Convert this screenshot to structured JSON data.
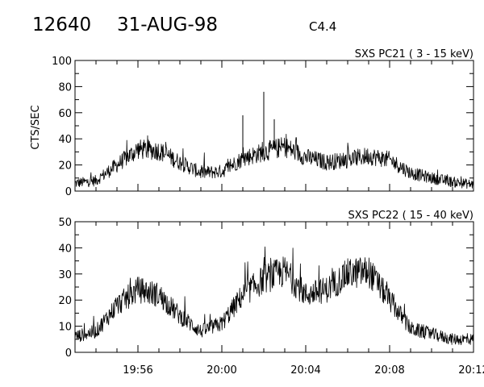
{
  "header": {
    "event_number": "12640",
    "date": "31-AUG-98",
    "flare_class": "C4.4"
  },
  "chart_data": [
    {
      "type": "line",
      "title": "SXS PC21  ( 3 - 15 keV)",
      "ylabel": "CTS/SEC",
      "xlim": [
        "19:53",
        "20:12"
      ],
      "ylim": [
        0,
        100
      ],
      "y_ticks": [
        0,
        20,
        40,
        60,
        80,
        100
      ],
      "y_tick_labels": [
        "0",
        "20",
        "40",
        "60",
        "80",
        "100"
      ],
      "x_ticks": [
        "19:56",
        "20:00",
        "20:04",
        "20:08",
        "20:12"
      ],
      "x_tick_labels_shown": false,
      "grid": false,
      "series": [
        {
          "x": [
            "19:53",
            "19:54",
            "19:55",
            "19:56",
            "19:57",
            "19:58",
            "19:59",
            "20:00",
            "20:01",
            "20:02",
            "20:03",
            "20:04",
            "20:05",
            "20:06",
            "20:07",
            "20:08",
            "20:09",
            "20:10",
            "20:11",
            "20:12"
          ],
          "values": [
            6,
            8,
            20,
            32,
            31,
            22,
            14,
            15,
            25,
            30,
            34,
            26,
            22,
            24,
            27,
            24,
            14,
            10,
            7,
            5
          ]
        }
      ],
      "annotations": [
        {
          "x": "20:01",
          "y": 58,
          "text": ""
        },
        {
          "x": "20:02",
          "y": 76,
          "text": ""
        },
        {
          "x": "20:02:30",
          "y": 55,
          "text": ""
        }
      ]
    },
    {
      "type": "line",
      "title": "SXS PC22  ( 15 - 40 keV)",
      "ylabel": "",
      "xlim": [
        "19:53",
        "20:12"
      ],
      "ylim": [
        0,
        50
      ],
      "y_ticks": [
        0,
        10,
        20,
        30,
        40,
        50
      ],
      "y_tick_labels": [
        "0",
        "10",
        "20",
        "30",
        "40",
        "50"
      ],
      "x_ticks": [
        "19:56",
        "20:00",
        "20:04",
        "20:08",
        "20:12"
      ],
      "x_tick_labels": [
        "19:56",
        "20:00",
        "20:04",
        "20:08",
        "20:12"
      ],
      "grid": false,
      "series": [
        {
          "x": [
            "19:53",
            "19:54",
            "19:55",
            "19:56",
            "19:57",
            "19:58",
            "19:59",
            "20:00",
            "20:01",
            "20:02",
            "20:03",
            "20:04",
            "20:05",
            "20:06",
            "20:07",
            "20:08",
            "20:09",
            "20:10",
            "20:11",
            "20:12"
          ],
          "values": [
            6,
            8,
            18,
            24,
            22,
            14,
            8,
            11,
            22,
            28,
            31,
            22,
            24,
            30,
            31,
            20,
            9,
            7,
            5,
            5
          ]
        }
      ]
    }
  ]
}
